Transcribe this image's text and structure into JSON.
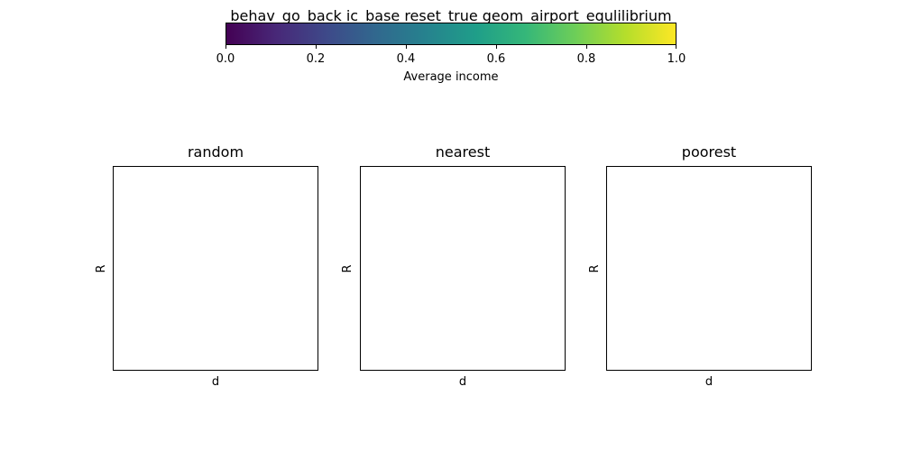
{
  "chart_data": {
    "suptitle": "behav_go_back ic_base reset_true geom_airport_equlilibrium",
    "colorbar": {
      "label": "Average income",
      "range": [
        0.0,
        1.0
      ],
      "ticks": [
        "0.0",
        "0.2",
        "0.4",
        "0.6",
        "0.8",
        "1.0"
      ],
      "colormap": "viridis",
      "orientation": "horizontal",
      "placement": "top"
    },
    "panels": [
      {
        "type": "heatmap",
        "title": "random",
        "xlabel": "d",
        "ylabel": "R",
        "values": []
      },
      {
        "type": "heatmap",
        "title": "nearest",
        "xlabel": "d",
        "ylabel": "R",
        "values": []
      },
      {
        "type": "heatmap",
        "title": "poorest",
        "xlabel": "d",
        "ylabel": "R",
        "values": []
      }
    ],
    "grid": false
  }
}
